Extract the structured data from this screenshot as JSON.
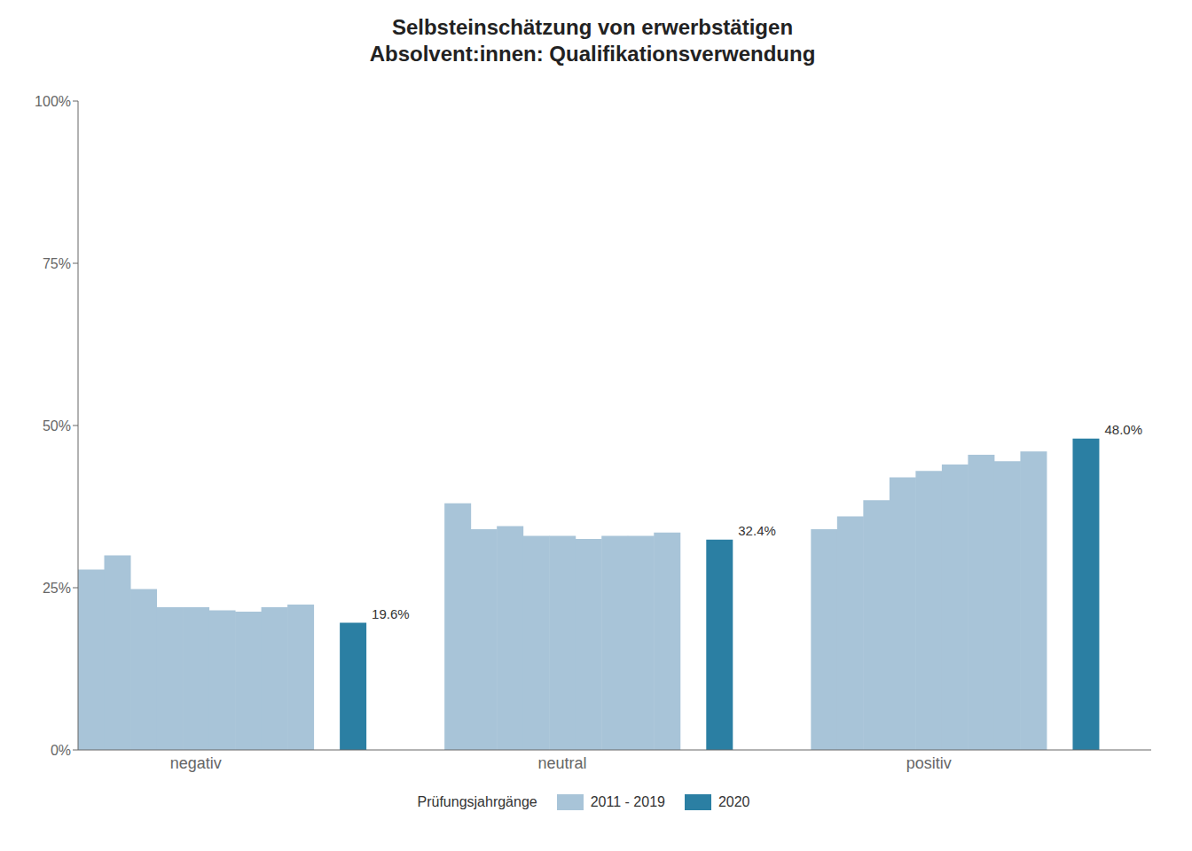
{
  "chart_data": {
    "type": "bar",
    "title": "Selbsteinschätzung von erwerbstätigen\nAbsolvent:innen: Qualifikationsverwendung",
    "categories": [
      "negativ",
      "neutral",
      "positiv"
    ],
    "series": [
      {
        "name": "2011 - 2019",
        "color": "#a8c4d8",
        "values": [
          [
            0.278,
            0.3,
            0.248,
            0.22,
            0.22,
            0.215,
            0.213,
            0.22,
            0.224
          ],
          [
            0.38,
            0.34,
            0.345,
            0.33,
            0.33,
            0.325,
            0.33,
            0.33,
            0.335
          ],
          [
            0.34,
            0.36,
            0.385,
            0.42,
            0.43,
            0.44,
            0.455,
            0.445,
            0.46
          ]
        ]
      },
      {
        "name": "2020",
        "color": "#2b7fa3",
        "values": [
          0.196,
          0.324,
          0.48
        ],
        "value_labels": [
          "19.6%",
          "32.4%",
          "48.0%"
        ]
      }
    ],
    "legend_title": "Prüfungsjahrgänge",
    "legend": "bottom",
    "grid": false,
    "ylim": [
      0,
      1.0
    ],
    "yticks": [
      {
        "value": 0,
        "label": "0%"
      },
      {
        "value": 0.25,
        "label": "25%"
      },
      {
        "value": 0.5,
        "label": "50%"
      },
      {
        "value": 0.75,
        "label": "75%"
      },
      {
        "value": 1.0,
        "label": "100%"
      }
    ]
  }
}
